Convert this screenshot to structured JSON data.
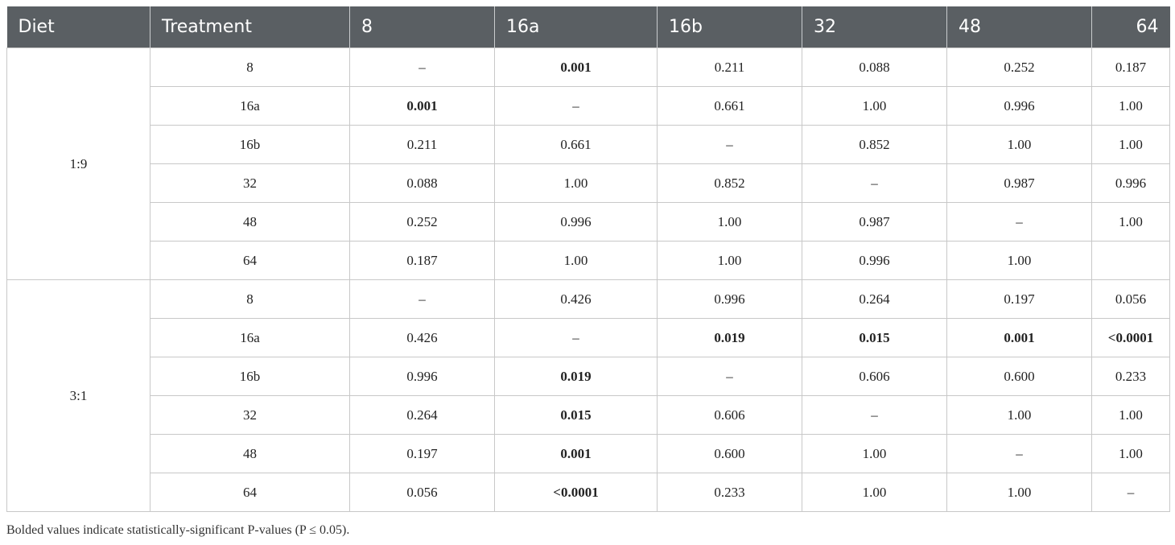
{
  "table": {
    "headers": [
      "Diet",
      "Treatment",
      "8",
      "16a",
      "16b",
      "32",
      "48",
      "64"
    ],
    "groups": [
      {
        "diet": "1:9",
        "rows": [
          {
            "treatment": "8",
            "cells": [
              {
                "v": "–",
                "b": false
              },
              {
                "v": "0.001",
                "b": true
              },
              {
                "v": "0.211",
                "b": false
              },
              {
                "v": "0.088",
                "b": false
              },
              {
                "v": "0.252",
                "b": false
              },
              {
                "v": "0.187",
                "b": false
              }
            ]
          },
          {
            "treatment": "16a",
            "cells": [
              {
                "v": "0.001",
                "b": true
              },
              {
                "v": "–",
                "b": false
              },
              {
                "v": "0.661",
                "b": false
              },
              {
                "v": "1.00",
                "b": false
              },
              {
                "v": "0.996",
                "b": false
              },
              {
                "v": "1.00",
                "b": false
              }
            ]
          },
          {
            "treatment": "16b",
            "cells": [
              {
                "v": "0.211",
                "b": false
              },
              {
                "v": "0.661",
                "b": false
              },
              {
                "v": "–",
                "b": false
              },
              {
                "v": "0.852",
                "b": false
              },
              {
                "v": "1.00",
                "b": false
              },
              {
                "v": "1.00",
                "b": false
              }
            ]
          },
          {
            "treatment": "32",
            "cells": [
              {
                "v": "0.088",
                "b": false
              },
              {
                "v": "1.00",
                "b": false
              },
              {
                "v": "0.852",
                "b": false
              },
              {
                "v": "–",
                "b": false
              },
              {
                "v": "0.987",
                "b": false
              },
              {
                "v": "0.996",
                "b": false
              }
            ]
          },
          {
            "treatment": "48",
            "cells": [
              {
                "v": "0.252",
                "b": false
              },
              {
                "v": "0.996",
                "b": false
              },
              {
                "v": "1.00",
                "b": false
              },
              {
                "v": "0.987",
                "b": false
              },
              {
                "v": "–",
                "b": false
              },
              {
                "v": "1.00",
                "b": false
              }
            ]
          },
          {
            "treatment": "64",
            "cells": [
              {
                "v": "0.187",
                "b": false
              },
              {
                "v": "1.00",
                "b": false
              },
              {
                "v": "1.00",
                "b": false
              },
              {
                "v": "0.996",
                "b": false
              },
              {
                "v": "1.00",
                "b": false
              },
              {
                "v": "",
                "b": false
              }
            ]
          }
        ]
      },
      {
        "diet": "3:1",
        "rows": [
          {
            "treatment": "8",
            "cells": [
              {
                "v": "–",
                "b": false
              },
              {
                "v": "0.426",
                "b": false
              },
              {
                "v": "0.996",
                "b": false
              },
              {
                "v": "0.264",
                "b": false
              },
              {
                "v": "0.197",
                "b": false
              },
              {
                "v": "0.056",
                "b": false
              }
            ]
          },
          {
            "treatment": "16a",
            "cells": [
              {
                "v": "0.426",
                "b": false
              },
              {
                "v": "–",
                "b": false
              },
              {
                "v": "0.019",
                "b": true
              },
              {
                "v": "0.015",
                "b": true
              },
              {
                "v": "0.001",
                "b": true
              },
              {
                "v": "<0.0001",
                "b": true
              }
            ]
          },
          {
            "treatment": "16b",
            "cells": [
              {
                "v": "0.996",
                "b": false
              },
              {
                "v": "0.019",
                "b": true
              },
              {
                "v": "–",
                "b": false
              },
              {
                "v": "0.606",
                "b": false
              },
              {
                "v": "0.600",
                "b": false
              },
              {
                "v": "0.233",
                "b": false
              }
            ]
          },
          {
            "treatment": "32",
            "cells": [
              {
                "v": "0.264",
                "b": false
              },
              {
                "v": "0.015",
                "b": true
              },
              {
                "v": "0.606",
                "b": false
              },
              {
                "v": "–",
                "b": false
              },
              {
                "v": "1.00",
                "b": false
              },
              {
                "v": "1.00",
                "b": false
              }
            ]
          },
          {
            "treatment": "48",
            "cells": [
              {
                "v": "0.197",
                "b": false
              },
              {
                "v": "0.001",
                "b": true
              },
              {
                "v": "0.600",
                "b": false
              },
              {
                "v": "1.00",
                "b": false
              },
              {
                "v": "–",
                "b": false
              },
              {
                "v": "1.00",
                "b": false
              }
            ]
          },
          {
            "treatment": "64",
            "cells": [
              {
                "v": "0.056",
                "b": false
              },
              {
                "v": "<0.0001",
                "b": true
              },
              {
                "v": "0.233",
                "b": false
              },
              {
                "v": "1.00",
                "b": false
              },
              {
                "v": "1.00",
                "b": false
              },
              {
                "v": "–",
                "b": false
              }
            ]
          }
        ]
      }
    ]
  },
  "footnote": "Bolded values indicate statistically-significant P-values (P ≤ 0.05).",
  "colors": {
    "header_bg": "#5a5f63",
    "header_text": "#ffffff",
    "border": "#c8c8c8"
  }
}
